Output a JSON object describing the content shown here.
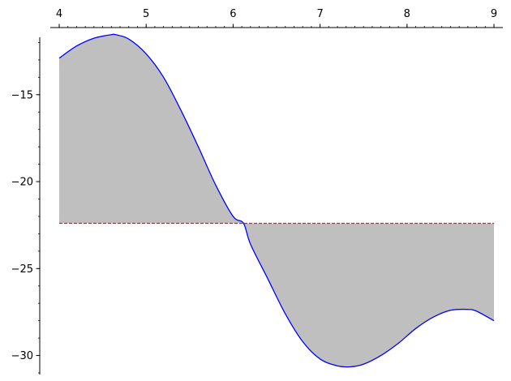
{
  "chart_data": {
    "type": "area",
    "title": "",
    "xlabel": "",
    "ylabel": "",
    "xlim": [
      4,
      9
    ],
    "ylim": [
      -31,
      -11.7
    ],
    "x_ticks": [
      4,
      5,
      6,
      7,
      8,
      9
    ],
    "x_tick_labels": [
      "4",
      "5",
      "6",
      "7",
      "8",
      "9"
    ],
    "y_ticks": [
      -15,
      -20,
      -25,
      -30
    ],
    "y_tick_labels": [
      "−15",
      "−20",
      "−25",
      "−30"
    ],
    "x_axis_position": "top",
    "grid": false,
    "reference_line": {
      "y": -22.4,
      "style": "dashed",
      "color": "#e41a1c"
    },
    "series": [
      {
        "x": [
          4.0,
          4.2,
          4.4,
          4.6,
          4.65,
          4.8,
          5.0,
          5.2,
          5.4,
          5.6,
          5.8,
          6.0,
          6.12,
          6.2,
          6.4,
          6.6,
          6.8,
          7.0,
          7.2,
          7.35,
          7.5,
          7.7,
          7.9,
          8.1,
          8.3,
          8.5,
          8.7,
          8.8,
          9.0
        ],
        "y": [
          -12.9,
          -12.2,
          -11.75,
          -11.55,
          -11.55,
          -11.8,
          -12.65,
          -14.0,
          -15.9,
          -18.0,
          -20.2,
          -22.0,
          -22.4,
          -23.6,
          -25.6,
          -27.6,
          -29.2,
          -30.2,
          -30.6,
          -30.65,
          -30.5,
          -30.0,
          -29.3,
          -28.45,
          -27.8,
          -27.4,
          -27.35,
          -27.45,
          -28.0
        ],
        "color": "#0000ff"
      }
    ],
    "fill_color": "#bfbfbf",
    "fill_between": "series and reference_line"
  }
}
